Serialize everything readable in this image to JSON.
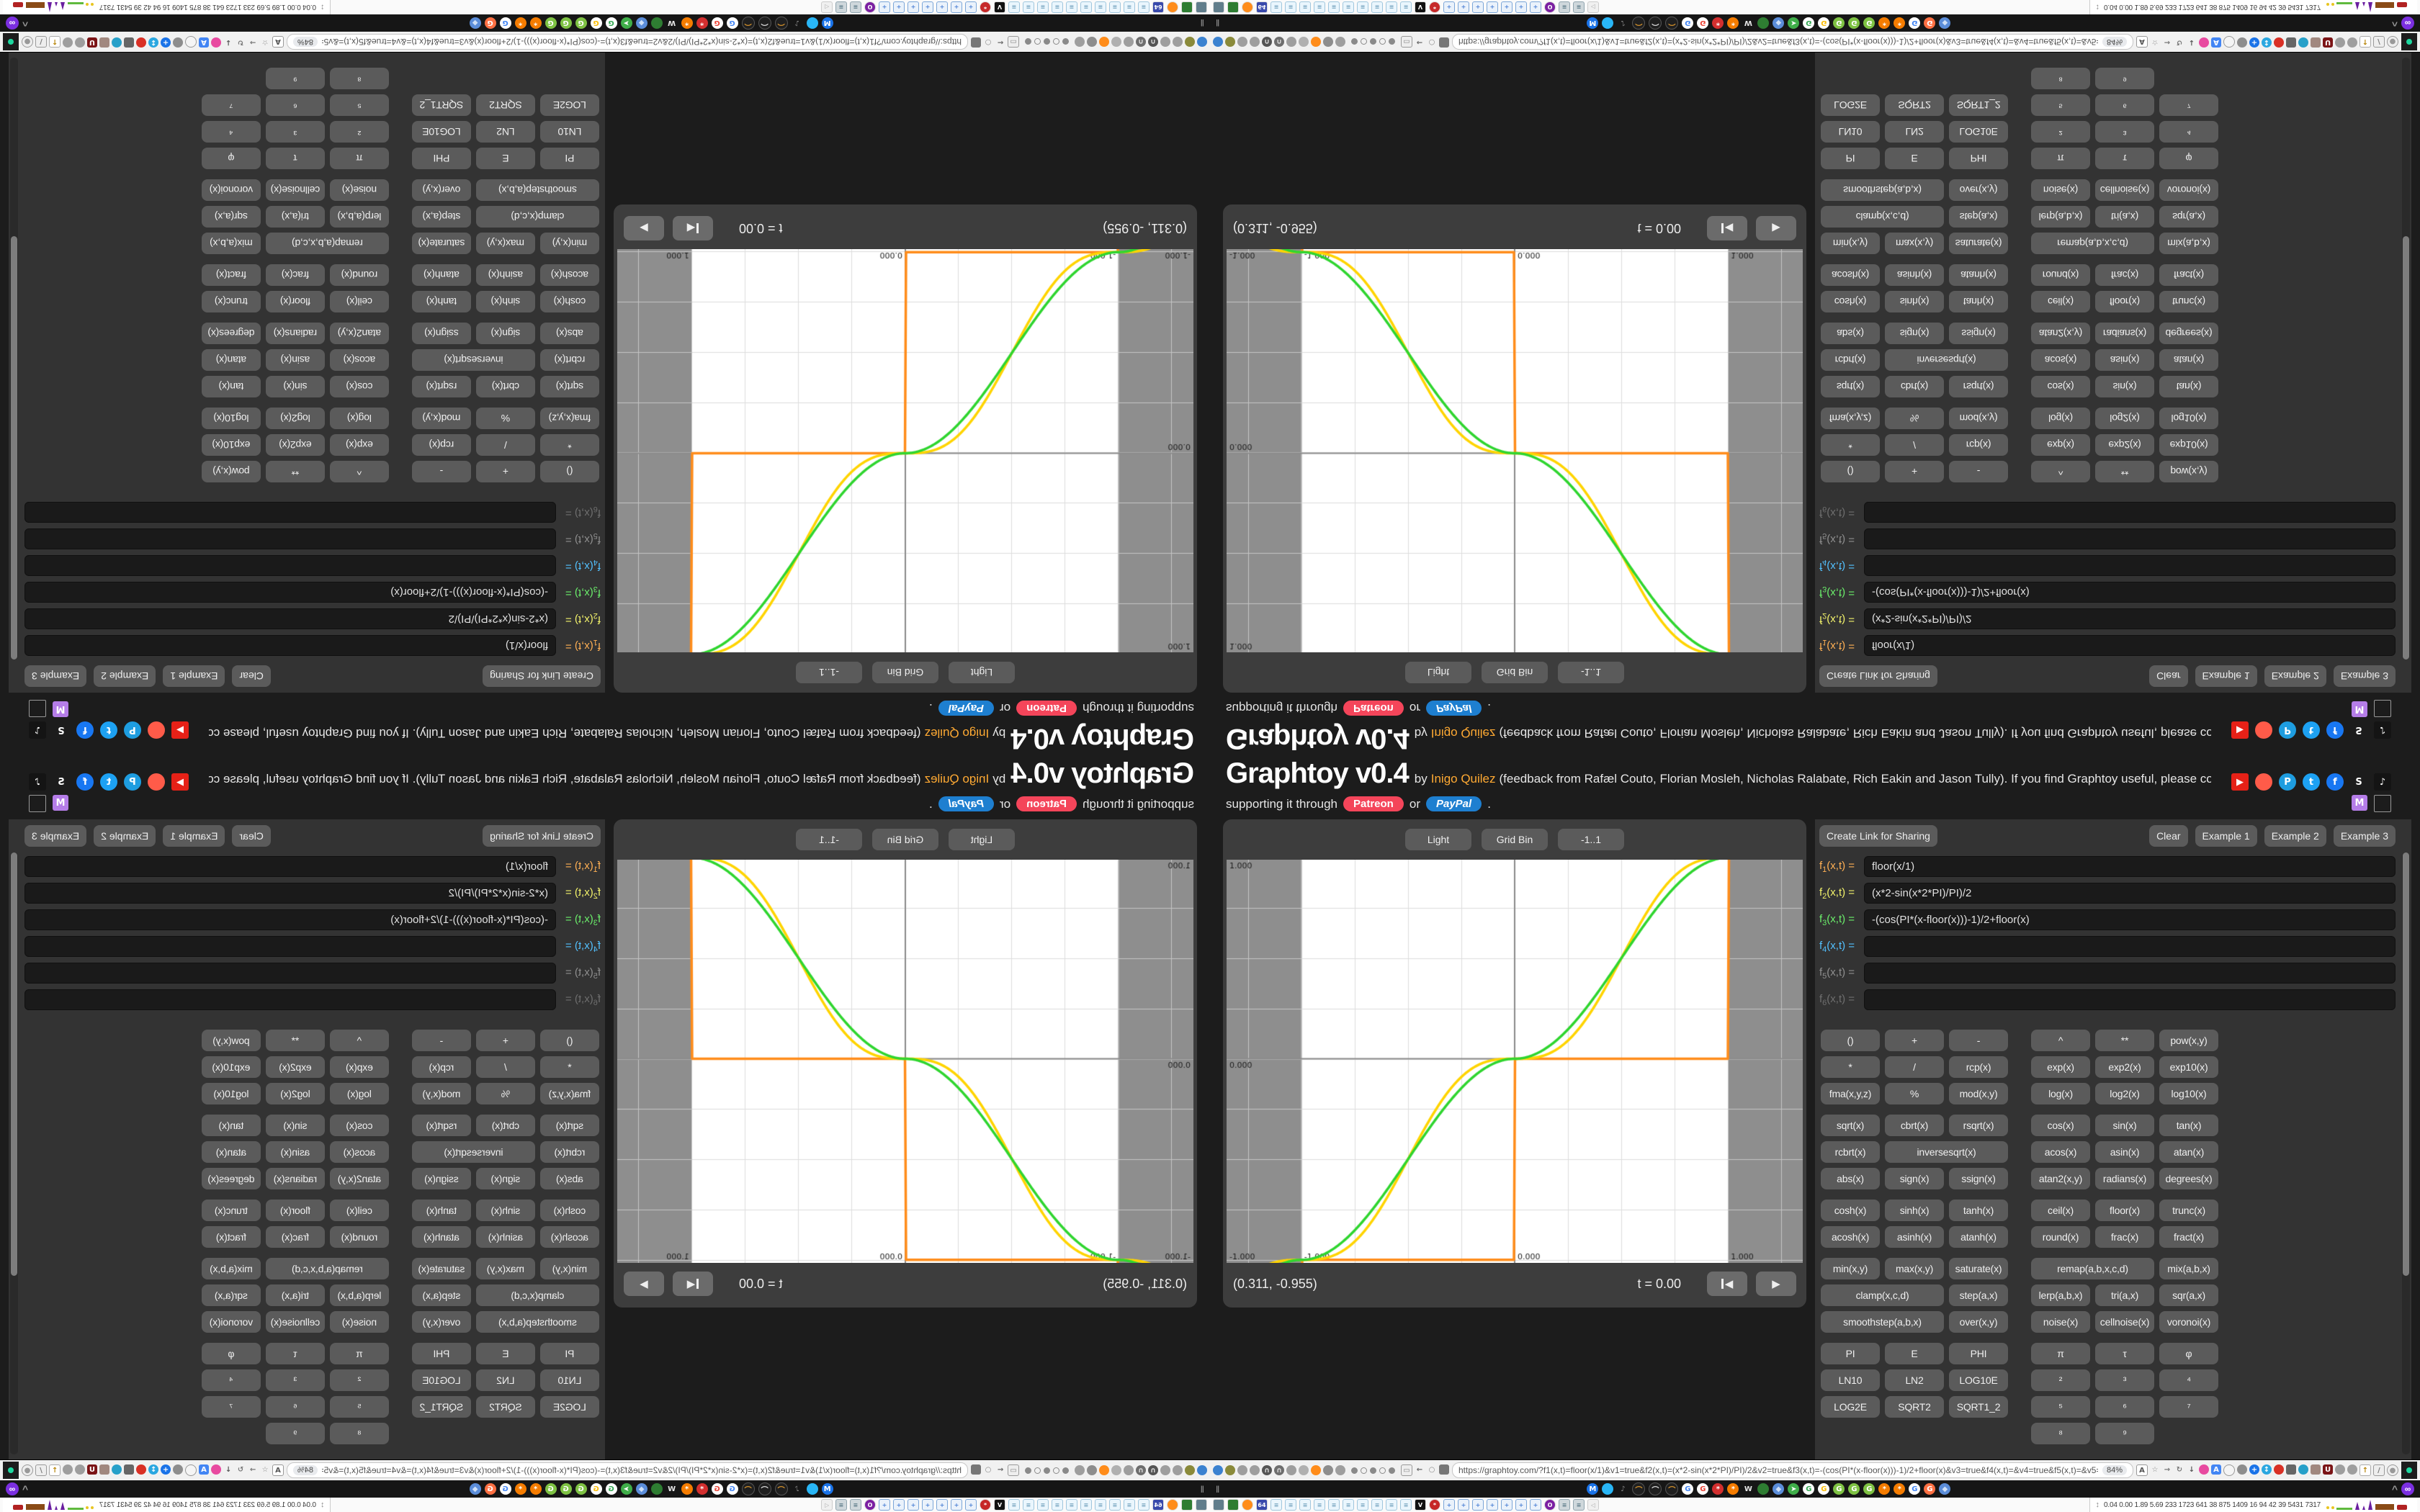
{
  "app": {
    "title": "Graphtoy v0.4",
    "by": "by",
    "author": "Inigo Quilez",
    "feedback": "(feedback from Rafæl Couto, Florian Mosleh, Nicholas Ralabate, Rich Eakin and Jason Tully). If you find Graphtoy useful, please consider",
    "support_prefix": "supporting it through",
    "patreon": "Patreon",
    "or": "or",
    "paypal": "PayPal",
    "period": "."
  },
  "social": {
    "row1": [
      {
        "name": "youtube",
        "glyph": "▶",
        "fg": "#ffffff",
        "bg": "#e62117",
        "shape": "r"
      },
      {
        "name": "patreon",
        "glyph": "",
        "fg": "#ffffff",
        "bg": "#ff5b49",
        "shape": "c"
      },
      {
        "name": "paypal",
        "glyph": "P",
        "fg": "#ffffff",
        "bg": "#1e9de0",
        "shape": "c"
      },
      {
        "name": "twitter",
        "glyph": "t",
        "fg": "#ffffff",
        "bg": "#1da1f2",
        "shape": "c"
      },
      {
        "name": "facebook",
        "glyph": "f",
        "fg": "#ffffff",
        "bg": "#1877f2",
        "shape": "c"
      },
      {
        "name": "shadertoy",
        "glyph": "S",
        "fg": "#ffffff",
        "bg": "",
        "shape": "n"
      },
      {
        "name": "tiktok",
        "glyph": "♪",
        "fg": "#ffffff",
        "bg": "#141414",
        "shape": "r"
      }
    ],
    "row2": [
      {
        "name": "mastodon",
        "glyph": "M",
        "fg": "#ffffff",
        "bg": "#b57de8",
        "shape": "r"
      },
      {
        "name": "broken-image",
        "glyph": "",
        "fg": "#999999",
        "bg": "",
        "shape": "o"
      }
    ]
  },
  "graph": {
    "buttons": [
      {
        "name": "light-button",
        "label": "Light"
      },
      {
        "name": "grid-bin-button",
        "label": "Grid Bin"
      },
      {
        "name": "range-button",
        "label": "-1..1"
      }
    ],
    "coords": "(0.311, -0.955)",
    "time_label": "t = 0.00",
    "player": [
      {
        "name": "skip-to-start-button",
        "glyph": "◀",
        "bar": true
      },
      {
        "name": "play-button",
        "glyph": "▶",
        "bar": false
      }
    ],
    "canvas": {
      "xmin": -1.35,
      "xmax": 1.35,
      "ymin": -1.015,
      "ymax": 0.99,
      "grid_step": 0.25,
      "band_min": -1,
      "band_max": 1,
      "bg": "#ffffff",
      "band_color": "#8e8e8e",
      "grid_color": "#dcdcdc",
      "band_grid_color": "#c4c4c4",
      "axis_color": "#8a8a8a",
      "label_color": "#1a1a1a",
      "y_labels": [
        {
          "v": 1,
          "t": "1.000"
        },
        {
          "v": 0,
          "t": "0.000"
        },
        {
          "v": -1,
          "t": "-1.000"
        }
      ],
      "x_labels": [
        {
          "v": -1,
          "t": "-1.000"
        },
        {
          "v": 0,
          "t": "0.000"
        },
        {
          "v": 1,
          "t": "1.000"
        }
      ],
      "functions": [
        {
          "expr": "floor(x/1)",
          "color": "#ff8c1a",
          "width": 3.5
        },
        {
          "expr": "(x*2-sin(x*2*PI)/PI)/2",
          "color": "#ffd400",
          "width": 3.5
        },
        {
          "expr": "-(cos(PI*(x-floor(x)))-1)/2+floor(x)",
          "color": "#2fd52f",
          "width": 3.5
        }
      ]
    }
  },
  "panel": {
    "create_link": "Create Link for Sharing",
    "actions": [
      {
        "name": "clear-button",
        "label": "Clear"
      },
      {
        "name": "example-1-button",
        "label": "Example 1"
      },
      {
        "name": "example-2-button",
        "label": "Example 2"
      },
      {
        "name": "example-3-button",
        "label": "Example 3"
      }
    ],
    "formulas": [
      {
        "idx": "1",
        "args": "(x,t) =",
        "value": "floor(x/1)",
        "color": "#ffb054"
      },
      {
        "idx": "2",
        "args": "(x,t) =",
        "value": "(x*2-sin(x*2*PI)/PI)/2",
        "color": "#f3f36b"
      },
      {
        "idx": "3",
        "args": "(x,t) =",
        "value": "-(cos(PI*(x-floor(x)))-1)/2+floor(x)",
        "color": "#6bef6b"
      },
      {
        "idx": "4",
        "args": "(x,t) =",
        "value": "",
        "color": "#53c1ff"
      },
      {
        "idx": "5",
        "args": "(x,t) =",
        "value": "",
        "color": "#8f8f8f"
      },
      {
        "idx": "6",
        "args": "(x,t) =",
        "value": "",
        "color": "#6f6f6f"
      }
    ],
    "button_groups": [
      [
        [
          "()",
          "+",
          "-",
          "^",
          "**",
          "pow(x,y)"
        ],
        [
          "*",
          "/",
          "rcp(x)",
          "exp(x)",
          "exp2(x)",
          "exp10(x)"
        ],
        [
          "fma(x,y,z)",
          "%",
          "mod(x,y)",
          "log(x)",
          "log2(x)",
          "log10(x)"
        ]
      ],
      [
        [
          "sqrt(x)",
          "cbrt(x)",
          "rsqrt(x)",
          "cos(x)",
          "sin(x)",
          "tan(x)"
        ],
        [
          "rcbrt(x)",
          {
            "l": "inversesqrt(x)",
            "s": 2
          },
          "acos(x)",
          "asin(x)",
          "atan(x)"
        ],
        [
          "abs(x)",
          "sign(x)",
          "ssign(x)",
          "atan2(x,y)",
          "radians(x)",
          "degrees(x)"
        ]
      ],
      [
        [
          "cosh(x)",
          "sinh(x)",
          "tanh(x)",
          "ceil(x)",
          "floor(x)",
          "trunc(x)"
        ],
        [
          "acosh(x)",
          "asinh(x)",
          "atanh(x)",
          "round(x)",
          "frac(x)",
          "fract(x)"
        ]
      ],
      [
        [
          "min(x,y)",
          "max(x,y)",
          "saturate(x)",
          {
            "l": "remap(a,b,x,c,d)",
            "s": 2
          },
          "mix(a,b,x)"
        ],
        [
          {
            "l": "clamp(x,c,d)",
            "s": 2
          },
          "step(a,x)",
          "lerp(a,b,x)",
          "tri(a,x)",
          "sqr(a,x)"
        ],
        [
          {
            "l": "smoothstep(a,b,x)",
            "s": 2
          },
          "over(x,y)",
          "noise(x)",
          "cellnoise(x)",
          "voronoi(x)"
        ]
      ],
      [
        [
          "PI",
          "E",
          "PHI",
          {
            "l": "π",
            "sup": true
          },
          {
            "l": "τ",
            "sup": true
          },
          {
            "l": "φ",
            "sup": true
          }
        ],
        [
          "LN10",
          "LN2",
          "LOG10E",
          {
            "l": "²",
            "sup": true
          },
          {
            "l": "³",
            "sup": true
          },
          {
            "l": "⁴",
            "sup": true
          }
        ],
        [
          "LOG2E",
          "SQRT2",
          "SQRT1_2",
          {
            "l": "⁵",
            "sup": true
          },
          {
            "l": "⁶",
            "sup": true
          },
          {
            "l": "⁷",
            "sup": true
          }
        ],
        [
          null,
          null,
          null,
          {
            "l": "⁸",
            "sup": true
          },
          {
            "l": "⁹",
            "sup": true
          },
          null
        ]
      ]
    ]
  },
  "chrome": {
    "url": "https://graphtoy.com/?f1(x,t)=floor(x/1)&v1=true&f2(x,t)=(x*2-sin(x*2*PI)/PI)/2&v2=true&f3(x,t)=-(cos(PI*(x-floor(x)))-1)/2+floor(x)&v3=true&f4(x,t)=&v4=true&f5(x,t)=&v5=false",
    "zoom": "84%",
    "tab_icons": [
      {
        "name": "balloon-tab",
        "bg": "#3b82d0",
        "glyph": "",
        "fg": "#fff",
        "shape": "c"
      },
      {
        "name": "olive-tab",
        "bg": "#8a8a3a",
        "glyph": "",
        "fg": "#fff",
        "shape": "c"
      },
      {
        "name": "globe-tab-1",
        "bg": "#9e9e9e",
        "glyph": "",
        "fg": "#fff",
        "shape": "c"
      },
      {
        "name": "globe-tab-2",
        "bg": "#9e9e9e",
        "glyph": "",
        "fg": "#fff",
        "shape": "c"
      },
      {
        "name": "headphones-tab",
        "bg": "#555555",
        "glyph": "∩",
        "fg": "#ddd",
        "shape": "c"
      },
      {
        "name": "arc-tab",
        "bg": "#6e6e6e",
        "glyph": "∩",
        "fg": "#ddd",
        "shape": "c"
      },
      {
        "name": "globe-tab-3",
        "bg": "#9e9e9e",
        "glyph": "",
        "fg": "#fff",
        "shape": "c"
      },
      {
        "name": "wrench-tab",
        "bg": "#b0b0b0",
        "glyph": "",
        "fg": "#fff",
        "shape": "c"
      },
      {
        "name": "firefox-tab",
        "bg": "#ff8c1a",
        "glyph": "",
        "fg": "#fff",
        "shape": "c"
      },
      {
        "name": "gear-tab",
        "bg": "#8d8d8d",
        "glyph": "",
        "fg": "#fff",
        "shape": "c"
      },
      {
        "name": "globe-tab-4",
        "bg": "#9e9e9e",
        "glyph": "",
        "fg": "#fff",
        "shape": "c"
      }
    ],
    "tab_dots": [
      {
        "f": 1
      },
      {
        "f": 0
      },
      {
        "f": 1
      },
      {
        "f": 0
      },
      {
        "f": 1
      }
    ],
    "nav_icons": [
      {
        "name": "folder",
        "bg": "#eeeeee",
        "glyph": "▭",
        "fg": "#888",
        "shape": "s",
        "bd": "#999"
      },
      {
        "name": "back-arrow",
        "bg": "",
        "glyph": "←",
        "fg": "#666",
        "shape": "n"
      },
      {
        "name": "shield",
        "bg": "",
        "glyph": "○",
        "fg": "#888",
        "shape": "n"
      },
      {
        "name": "lock",
        "bg": "#777777",
        "glyph": "",
        "fg": "#fff",
        "shape": "s"
      }
    ],
    "ext_icons": [
      {
        "name": "translate",
        "bg": "#ffffff",
        "glyph": "A",
        "fg": "#555",
        "shape": "s",
        "bd": "#999"
      },
      {
        "name": "bookmark-star",
        "bg": "",
        "glyph": "☆",
        "fg": "#888",
        "shape": "n"
      },
      {
        "name": "forward-arrow",
        "bg": "",
        "glyph": "→",
        "fg": "#777",
        "shape": "n"
      },
      {
        "name": "refresh",
        "bg": "",
        "glyph": "↻",
        "fg": "#777",
        "shape": "n"
      },
      {
        "name": "download",
        "bg": "",
        "glyph": "↓",
        "fg": "#555",
        "shape": "n"
      },
      {
        "name": "paint-palette",
        "bg": "#e84aa0",
        "glyph": "",
        "fg": "#fff",
        "shape": "c"
      },
      {
        "name": "translate-blue",
        "bg": "#4285f4",
        "glyph": "A",
        "fg": "#fff",
        "shape": "s"
      },
      {
        "name": "mouse",
        "bg": "#f5f5f5",
        "glyph": "",
        "fg": "#555",
        "shape": "c",
        "bd": "#999"
      },
      {
        "name": "gear-gray",
        "bg": "#8d8d8d",
        "glyph": "",
        "fg": "#fff",
        "shape": "c"
      },
      {
        "name": "plus-blue",
        "bg": "#1a73e8",
        "glyph": "+",
        "fg": "#fff",
        "shape": "c"
      },
      {
        "name": "sync-blue",
        "bg": "#2aa7e0",
        "glyph": "↕",
        "fg": "#fff",
        "shape": "c"
      },
      {
        "name": "record-red",
        "bg": "#d93025",
        "glyph": "",
        "fg": "#fff",
        "shape": "c"
      },
      {
        "name": "trash",
        "bg": "#666666",
        "glyph": "",
        "fg": "#fff",
        "shape": "s"
      },
      {
        "name": "globe-color",
        "bg": "#27a0c9",
        "glyph": "",
        "fg": "#fff",
        "shape": "c"
      },
      {
        "name": "box",
        "bg": "#a1887f",
        "glyph": "",
        "fg": "#fff",
        "shape": "s"
      },
      {
        "name": "uo-shield",
        "bg": "#7b1416",
        "glyph": "U",
        "fg": "#fff",
        "shape": "s"
      },
      {
        "name": "shield-gray",
        "bg": "#9e9e9e",
        "glyph": "",
        "fg": "#fff",
        "shape": "c"
      },
      {
        "name": "globe-gray",
        "bg": "#9e9e9e",
        "glyph": "",
        "fg": "#fff",
        "shape": "c"
      },
      {
        "name": "thumbs-up",
        "bg": "#ffffff",
        "glyph": "↑",
        "fg": "#b8860b",
        "shape": "s",
        "bd": "#aaa"
      },
      {
        "name": "wrench",
        "bg": "#eeeeee",
        "glyph": "/",
        "fg": "#777",
        "shape": "s",
        "bd": "#999"
      },
      {
        "name": "gear-outline",
        "bg": "#eeeeee",
        "glyph": "●",
        "fg": "#999",
        "shape": "c",
        "bd": "#999"
      }
    ],
    "pause_glyph": "‖",
    "favicons": [
      {
        "name": "gmail",
        "bg": "#1a73e8",
        "glyph": "M",
        "fg": "#fff",
        "shape": "c"
      },
      {
        "name": "water-drop",
        "bg": "#29b6f6",
        "glyph": "",
        "fg": "#fff",
        "shape": "c"
      },
      {
        "name": "muted-speaker",
        "bg": "",
        "glyph": "♪",
        "fg": "#888",
        "shape": "n"
      },
      {
        "name": "podcast-1",
        "bg": "#1f1f1f",
        "glyph": "⌒",
        "fg": "#e39b2d",
        "shape": "c",
        "bd": "#555"
      },
      {
        "name": "podcast-2",
        "bg": "#1f1f1f",
        "glyph": "⌒",
        "fg": "#e8e8e8",
        "shape": "c",
        "bd": "#555"
      },
      {
        "name": "podcast-3",
        "bg": "#1f1f1f",
        "glyph": "⌒",
        "fg": "#e39b2d",
        "shape": "c",
        "bd": "#555"
      },
      {
        "name": "google-1",
        "bg": "#ffffff",
        "glyph": "G",
        "fg": "#4285f4",
        "shape": "c"
      },
      {
        "name": "google-2",
        "bg": "#ffffff",
        "glyph": "G",
        "fg": "#ea4335",
        "shape": "c"
      },
      {
        "name": "gear-red",
        "bg": "#d32f2f",
        "glyph": "*",
        "fg": "#fff",
        "shape": "c"
      },
      {
        "name": "gear-orange-1",
        "bg": "#f57c00",
        "glyph": "*",
        "fg": "#fff",
        "shape": "c"
      },
      {
        "name": "wikipedia",
        "bg": "",
        "glyph": "W",
        "fg": "#e8e8e8",
        "shape": "n"
      },
      {
        "name": "person-green",
        "bg": "#2e7d32",
        "glyph": "",
        "fg": "#fff",
        "shape": "c"
      },
      {
        "name": "cube-blue-1",
        "bg": "#5b8dd9",
        "glyph": "◆",
        "fg": "#cfe0f7",
        "shape": "c"
      },
      {
        "name": "compass",
        "bg": "#3fae49",
        "glyph": "➤",
        "fg": "#fff",
        "shape": "c"
      },
      {
        "name": "google-3",
        "bg": "#ffffff",
        "glyph": "G",
        "fg": "#34a853",
        "shape": "c"
      },
      {
        "name": "google-4",
        "bg": "#ffffff",
        "glyph": "G",
        "fg": "#fbbc05",
        "shape": "c"
      },
      {
        "name": "google-big-1",
        "bg": "#7ec243",
        "glyph": "G",
        "fg": "#fff",
        "shape": "c"
      },
      {
        "name": "google-big-2",
        "bg": "#7ec243",
        "glyph": "G",
        "fg": "#fff",
        "shape": "c"
      },
      {
        "name": "google-big-3",
        "bg": "#7ec243",
        "glyph": "G",
        "fg": "#fff",
        "shape": "c"
      },
      {
        "name": "gear-orange-2",
        "bg": "#f57c00",
        "glyph": "*",
        "fg": "#fff",
        "shape": "c"
      },
      {
        "name": "gear-orange-3",
        "bg": "#f57c00",
        "glyph": "*",
        "fg": "#fff",
        "shape": "c"
      },
      {
        "name": "google-5",
        "bg": "#ffffff",
        "glyph": "G",
        "fg": "#4285f4",
        "shape": "c"
      },
      {
        "name": "google-orange",
        "bg": "#ff7043",
        "glyph": "G",
        "fg": "#fff",
        "shape": "c"
      },
      {
        "name": "cube-blue-2",
        "bg": "#5b8dd9",
        "glyph": "◆",
        "fg": "#cfe0f7",
        "shape": "c"
      }
    ],
    "corner": {
      "chevron": "^",
      "infinity": "∞"
    },
    "taskbar_icons": [
      {
        "name": "display-app",
        "bg": "#607d8b",
        "glyph": "",
        "fg": "#fff",
        "shape": "s",
        "count": 1
      },
      {
        "name": "photo-card-app",
        "bg": "#2e7d32",
        "glyph": "",
        "fg": "#fff",
        "shape": "s",
        "count": 1
      },
      {
        "name": "firefox-app",
        "bg": "#ff8c1a",
        "glyph": "",
        "fg": "#fff",
        "shape": "c",
        "count": 1
      },
      {
        "name": "floppy-64-app",
        "bg": "#3949ab",
        "glyph": "64",
        "fg": "#fff",
        "shape": "s",
        "count": 1
      },
      {
        "name": "notepad-app",
        "bg": "#eaf6fd",
        "glyph": "≡",
        "fg": "#7aa7c2",
        "shape": "s",
        "bd": "#9fc6dd",
        "count": 10
      },
      {
        "name": "v-app",
        "bg": "#111111",
        "glyph": "V",
        "fg": "#fff",
        "shape": "s",
        "count": 1
      },
      {
        "name": "red-gear-app",
        "bg": "#c62828",
        "glyph": "*",
        "fg": "#fff",
        "shape": "c",
        "count": 1
      },
      {
        "name": "calculator-app",
        "bg": "#eaf2fb",
        "glyph": "+",
        "fg": "#4a7fd4",
        "shape": "s",
        "bd": "#7ba6d8",
        "count": 7
      },
      {
        "name": "owl-app",
        "bg": "#7b1fa2",
        "glyph": "O",
        "fg": "#fff",
        "shape": "c",
        "count": 1
      },
      {
        "name": "scroll-app",
        "bg": "#cfd8dc",
        "glyph": "≡",
        "fg": "#607d8b",
        "shape": "s",
        "bd": "#90a4ae",
        "count": 2
      },
      {
        "name": "speaker-muted-app",
        "bg": "#f0f0f0",
        "glyph": "◁",
        "fg": "#aaa",
        "shape": "s",
        "bd": "#ccc",
        "count": 1
      }
    ],
    "stats": {
      "updown": "↕",
      "numbers": "0.04 0.00 1.89 5.69 233 1723 641  38  875 1409  16   94   42   39  5431 7317"
    }
  }
}
